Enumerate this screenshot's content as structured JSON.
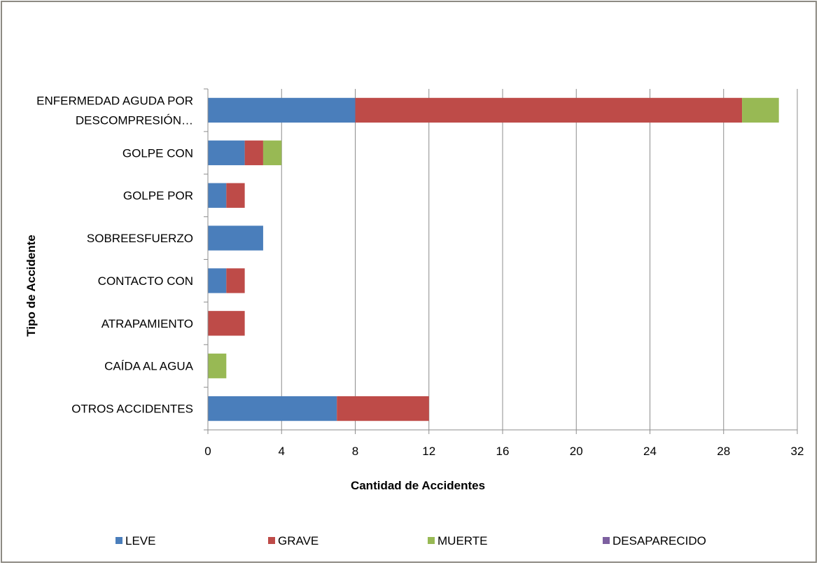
{
  "chart_data": {
    "type": "bar",
    "orientation": "horizontal",
    "stacked": true,
    "categories": [
      [
        "ENFERMEDAD AGUDA POR",
        "DESCOMPRESIÓN…"
      ],
      [
        "GOLPE CON"
      ],
      [
        "GOLPE POR"
      ],
      [
        "SOBREESFUERZO"
      ],
      [
        "CONTACTO CON"
      ],
      [
        "ATRAPAMIENTO"
      ],
      [
        "CAÍDA AL AGUA"
      ],
      [
        "OTROS ACCIDENTES"
      ]
    ],
    "series": [
      {
        "name": "LEVE",
        "color": "#4a7ebb",
        "values": [
          8,
          2,
          1,
          3,
          1,
          0,
          0,
          7
        ]
      },
      {
        "name": "GRAVE",
        "color": "#be4b48",
        "values": [
          21,
          1,
          1,
          0,
          1,
          2,
          0,
          5
        ]
      },
      {
        "name": "MUERTE",
        "color": "#98b954",
        "values": [
          2,
          1,
          0,
          0,
          0,
          0,
          1,
          0
        ]
      },
      {
        "name": "DESAPARECIDO",
        "color": "#7d60a0",
        "values": [
          0,
          0,
          0,
          0,
          0,
          0,
          0,
          0
        ]
      }
    ],
    "xlim": [
      0,
      32
    ],
    "xticks": [
      0,
      4,
      8,
      12,
      16,
      20,
      24,
      28,
      32
    ],
    "xlabel": "Cantidad de Accidentes",
    "ylabel": "Tipo de Accidente",
    "title": "",
    "grid": "vertical",
    "legend_position": "bottom"
  }
}
